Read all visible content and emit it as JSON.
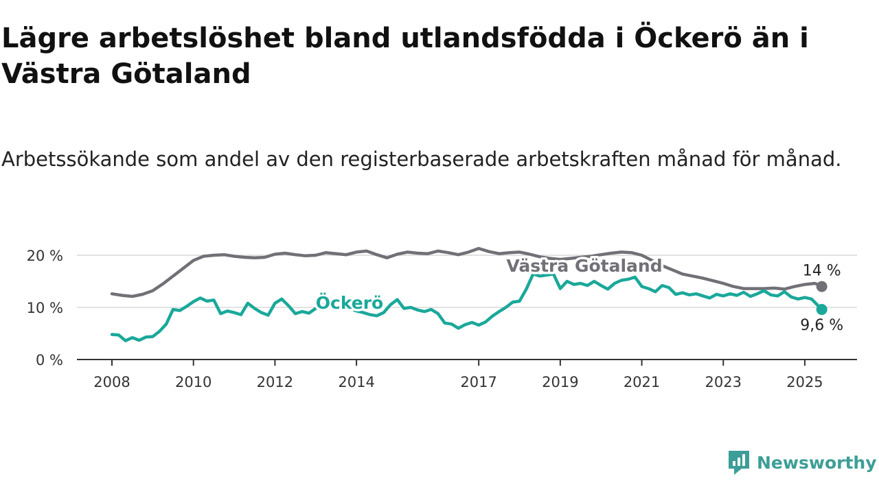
{
  "title": "Lägre arbetslöshet bland utlandsfödda i Öckerö än i Västra Götaland",
  "subtitle": "Arbetssökande som andel av den registerbaserade arbetskraften månad för månad.",
  "brand": {
    "name": "Newsworthy",
    "icon": "newsworthy-logo-icon"
  },
  "colors": {
    "ockero": "#1aa89a",
    "vg": "#727077",
    "grid": "#d9d9d9",
    "axis": "#333333"
  },
  "chart_data": {
    "type": "line",
    "title": "Lägre arbetslöshet bland utlandsfödda i Öckerö än i Västra Götaland",
    "xlabel": "",
    "ylabel": "",
    "xlim": [
      "2008-01",
      "2025-12"
    ],
    "ylim": [
      0,
      20
    ],
    "yticks": [
      {
        "value": 0,
        "label": "0 %"
      },
      {
        "value": 10,
        "label": "10 %"
      },
      {
        "value": 20,
        "label": "20 %"
      }
    ],
    "xticks": [
      {
        "value": "2008-01",
        "label": "2008"
      },
      {
        "value": "2010-01",
        "label": "2010"
      },
      {
        "value": "2012-01",
        "label": "2012"
      },
      {
        "value": "2014-01",
        "label": "2014"
      },
      {
        "value": "2017-01",
        "label": "2017"
      },
      {
        "value": "2019-01",
        "label": "2019"
      },
      {
        "value": "2021-01",
        "label": "2021"
      },
      {
        "value": "2023-01",
        "label": "2023"
      },
      {
        "value": "2025-01",
        "label": "2025"
      }
    ],
    "grid": true,
    "series": [
      {
        "name": "Västra Götaland",
        "color": "#727077",
        "end_label": "14 %",
        "points": [
          [
            "2008-01",
            12.6
          ],
          [
            "2008-04",
            12.3
          ],
          [
            "2008-07",
            12.1
          ],
          [
            "2008-10",
            12.5
          ],
          [
            "2009-01",
            13.2
          ],
          [
            "2009-04",
            14.5
          ],
          [
            "2009-07",
            16.0
          ],
          [
            "2009-10",
            17.5
          ],
          [
            "2010-01",
            19.0
          ],
          [
            "2010-04",
            19.8
          ],
          [
            "2010-07",
            20.0
          ],
          [
            "2010-10",
            20.1
          ],
          [
            "2011-01",
            19.8
          ],
          [
            "2011-04",
            19.6
          ],
          [
            "2011-07",
            19.5
          ],
          [
            "2011-10",
            19.6
          ],
          [
            "2012-01",
            20.2
          ],
          [
            "2012-04",
            20.4
          ],
          [
            "2012-07",
            20.1
          ],
          [
            "2012-10",
            19.9
          ],
          [
            "2013-01",
            20.0
          ],
          [
            "2013-04",
            20.5
          ],
          [
            "2013-07",
            20.3
          ],
          [
            "2013-10",
            20.1
          ],
          [
            "2014-01",
            20.6
          ],
          [
            "2014-04",
            20.8
          ],
          [
            "2014-07",
            20.1
          ],
          [
            "2014-10",
            19.5
          ],
          [
            "2015-01",
            20.2
          ],
          [
            "2015-04",
            20.6
          ],
          [
            "2015-07",
            20.4
          ],
          [
            "2015-10",
            20.3
          ],
          [
            "2016-01",
            20.8
          ],
          [
            "2016-04",
            20.5
          ],
          [
            "2016-07",
            20.1
          ],
          [
            "2016-10",
            20.6
          ],
          [
            "2017-01",
            21.3
          ],
          [
            "2017-04",
            20.7
          ],
          [
            "2017-07",
            20.3
          ],
          [
            "2017-10",
            20.5
          ],
          [
            "2018-01",
            20.6
          ],
          [
            "2018-04",
            20.2
          ],
          [
            "2018-07",
            19.7
          ],
          [
            "2018-10",
            19.4
          ],
          [
            "2019-01",
            19.2
          ],
          [
            "2019-04",
            19.4
          ],
          [
            "2019-07",
            19.6
          ],
          [
            "2019-10",
            19.8
          ],
          [
            "2020-01",
            20.1
          ],
          [
            "2020-04",
            20.4
          ],
          [
            "2020-07",
            20.6
          ],
          [
            "2020-10",
            20.5
          ],
          [
            "2021-01",
            20.0
          ],
          [
            "2021-04",
            19.0
          ],
          [
            "2021-07",
            18.0
          ],
          [
            "2021-10",
            17.2
          ],
          [
            "2022-01",
            16.4
          ],
          [
            "2022-04",
            16.0
          ],
          [
            "2022-07",
            15.6
          ],
          [
            "2022-10",
            15.1
          ],
          [
            "2023-01",
            14.6
          ],
          [
            "2023-04",
            14.0
          ],
          [
            "2023-07",
            13.6
          ],
          [
            "2023-10",
            13.6
          ],
          [
            "2024-01",
            13.6
          ],
          [
            "2024-04",
            13.7
          ],
          [
            "2024-07",
            13.5
          ],
          [
            "2024-10",
            14.0
          ],
          [
            "2025-01",
            14.4
          ],
          [
            "2025-04",
            14.6
          ],
          [
            "2025-06",
            14.0
          ]
        ]
      },
      {
        "name": "Öckerö",
        "color": "#1aa89a",
        "end_label": "9,6 %",
        "points": [
          [
            "2008-01",
            4.8
          ],
          [
            "2008-03",
            4.7
          ],
          [
            "2008-05",
            3.6
          ],
          [
            "2008-07",
            4.2
          ],
          [
            "2008-09",
            3.7
          ],
          [
            "2008-11",
            4.3
          ],
          [
            "2009-01",
            4.4
          ],
          [
            "2009-03",
            5.4
          ],
          [
            "2009-05",
            6.8
          ],
          [
            "2009-07",
            9.6
          ],
          [
            "2009-09",
            9.4
          ],
          [
            "2009-11",
            10.2
          ],
          [
            "2010-01",
            11.1
          ],
          [
            "2010-03",
            11.8
          ],
          [
            "2010-05",
            11.2
          ],
          [
            "2010-07",
            11.4
          ],
          [
            "2010-09",
            8.8
          ],
          [
            "2010-11",
            9.3
          ],
          [
            "2011-01",
            9.0
          ],
          [
            "2011-03",
            8.6
          ],
          [
            "2011-05",
            10.8
          ],
          [
            "2011-07",
            9.8
          ],
          [
            "2011-09",
            9.0
          ],
          [
            "2011-11",
            8.5
          ],
          [
            "2012-01",
            10.8
          ],
          [
            "2012-03",
            11.6
          ],
          [
            "2012-05",
            10.3
          ],
          [
            "2012-07",
            8.8
          ],
          [
            "2012-09",
            9.2
          ],
          [
            "2012-11",
            8.9
          ],
          [
            "2013-01",
            9.8
          ],
          [
            "2013-03",
            10.4
          ],
          [
            "2013-05",
            10.6
          ],
          [
            "2013-07",
            10.0
          ],
          [
            "2013-09",
            9.6
          ],
          [
            "2013-11",
            9.8
          ],
          [
            "2014-01",
            9.3
          ],
          [
            "2014-03",
            9.0
          ],
          [
            "2014-05",
            8.6
          ],
          [
            "2014-07",
            8.4
          ],
          [
            "2014-09",
            9.0
          ],
          [
            "2014-11",
            10.5
          ],
          [
            "2015-01",
            11.5
          ],
          [
            "2015-03",
            9.8
          ],
          [
            "2015-05",
            10.0
          ],
          [
            "2015-07",
            9.5
          ],
          [
            "2015-09",
            9.2
          ],
          [
            "2015-11",
            9.6
          ],
          [
            "2016-01",
            8.8
          ],
          [
            "2016-03",
            7.0
          ],
          [
            "2016-05",
            6.8
          ],
          [
            "2016-07",
            6.0
          ],
          [
            "2016-09",
            6.7
          ],
          [
            "2016-11",
            7.1
          ],
          [
            "2017-01",
            6.6
          ],
          [
            "2017-03",
            7.2
          ],
          [
            "2017-05",
            8.3
          ],
          [
            "2017-07",
            9.2
          ],
          [
            "2017-09",
            10.0
          ],
          [
            "2017-11",
            11.0
          ],
          [
            "2018-01",
            11.2
          ],
          [
            "2018-03",
            13.5
          ],
          [
            "2018-05",
            16.4
          ],
          [
            "2018-07",
            16.0
          ],
          [
            "2018-09",
            16.2
          ],
          [
            "2018-11",
            16.4
          ],
          [
            "2019-01",
            13.6
          ],
          [
            "2019-03",
            15.0
          ],
          [
            "2019-05",
            14.4
          ],
          [
            "2019-07",
            14.6
          ],
          [
            "2019-09",
            14.2
          ],
          [
            "2019-11",
            15.0
          ],
          [
            "2020-01",
            14.2
          ],
          [
            "2020-03",
            13.5
          ],
          [
            "2020-05",
            14.6
          ],
          [
            "2020-07",
            15.2
          ],
          [
            "2020-09",
            15.4
          ],
          [
            "2020-11",
            15.8
          ],
          [
            "2021-01",
            14.0
          ],
          [
            "2021-03",
            13.6
          ],
          [
            "2021-05",
            13.0
          ],
          [
            "2021-07",
            14.2
          ],
          [
            "2021-09",
            13.8
          ],
          [
            "2021-11",
            12.5
          ],
          [
            "2022-01",
            12.8
          ],
          [
            "2022-03",
            12.4
          ],
          [
            "2022-05",
            12.6
          ],
          [
            "2022-07",
            12.2
          ],
          [
            "2022-09",
            11.8
          ],
          [
            "2022-11",
            12.5
          ],
          [
            "2023-01",
            12.2
          ],
          [
            "2023-03",
            12.6
          ],
          [
            "2023-05",
            12.3
          ],
          [
            "2023-07",
            12.9
          ],
          [
            "2023-09",
            12.1
          ],
          [
            "2023-11",
            12.6
          ],
          [
            "2024-01",
            13.2
          ],
          [
            "2024-03",
            12.4
          ],
          [
            "2024-05",
            12.2
          ],
          [
            "2024-07",
            13.0
          ],
          [
            "2024-09",
            12.0
          ],
          [
            "2024-11",
            11.6
          ],
          [
            "2025-01",
            11.9
          ],
          [
            "2025-03",
            11.6
          ],
          [
            "2025-06",
            9.6
          ]
        ]
      }
    ]
  }
}
